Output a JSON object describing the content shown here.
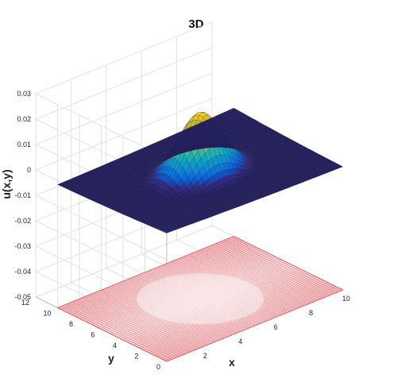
{
  "chart_data": {
    "type": "surface3d",
    "title": "3D",
    "xlabel": "x",
    "ylabel": "y",
    "zlabel": "u(x,y)",
    "xlim": [
      0,
      10
    ],
    "ylim": [
      0,
      12
    ],
    "zlim": [
      -0.05,
      0.03
    ],
    "x_ticks": [
      2,
      4,
      6,
      8,
      10
    ],
    "y_ticks": [
      0,
      2,
      4,
      6,
      8,
      10,
      12
    ],
    "z_ticks": [
      -0.05,
      -0.04,
      -0.03,
      -0.02,
      -0.01,
      0,
      0.01,
      0.02,
      0.03
    ],
    "x_tick_labels": [
      "2",
      "4",
      "6",
      "8",
      "10"
    ],
    "y_tick_labels": [
      "0",
      "2",
      "4",
      "6",
      "8",
      "10",
      "12"
    ],
    "z_tick_labels": [
      "-0.05",
      "-0.04",
      "-0.03",
      "-0.02",
      "-0.01",
      "0",
      "0.01",
      "0.02",
      "0.03"
    ],
    "grid": true,
    "surface": {
      "domain_x": [
        0,
        10
      ],
      "domain_y": [
        0,
        10
      ],
      "peak_center": [
        5,
        5
      ],
      "peak_value": 0.0245,
      "colormap": "parula"
    },
    "contour_plane": {
      "z": -0.05,
      "color": "#e8202a"
    }
  }
}
